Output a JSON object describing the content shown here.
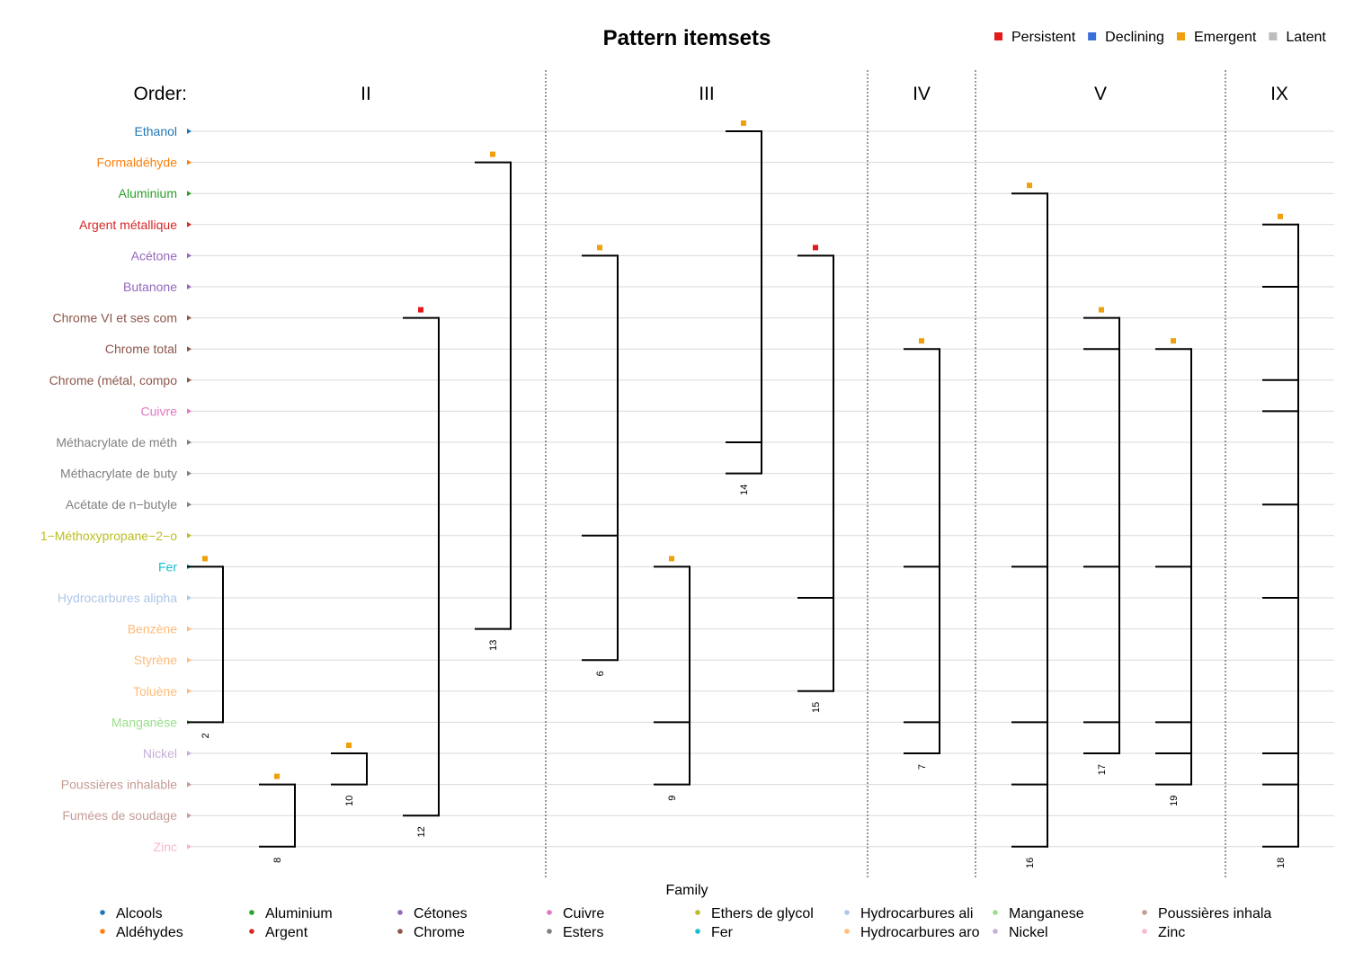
{
  "chart_data": {
    "type": "itemset-pattern",
    "title": "Pattern itemsets",
    "status_legend": [
      {
        "name": "Persistent",
        "color": "#e31a1c"
      },
      {
        "name": "Declining",
        "color": "#3a6fd8"
      },
      {
        "name": "Emergent",
        "color": "#f0a00a"
      },
      {
        "name": "Latent",
        "color": "#bdbdbd"
      }
    ],
    "order_label": "Order:",
    "orders": [
      {
        "label": "II",
        "patterns": [
          2,
          8,
          10,
          12,
          13
        ]
      },
      {
        "label": "III",
        "patterns": [
          6,
          9,
          14,
          15
        ]
      },
      {
        "label": "IV",
        "patterns": [
          7
        ]
      },
      {
        "label": "V",
        "patterns": [
          16,
          17,
          19
        ]
      },
      {
        "label": "IX",
        "patterns": [
          18
        ]
      }
    ],
    "items": [
      {
        "name": "Ethanol",
        "family": "Alcools"
      },
      {
        "name": "Formaldéhyde",
        "family": "Aldéhydes"
      },
      {
        "name": "Aluminium",
        "family": "Aluminium"
      },
      {
        "name": "Argent métallique",
        "family": "Argent"
      },
      {
        "name": "Acétone",
        "family": "Cétones"
      },
      {
        "name": "Butanone",
        "family": "Cétones"
      },
      {
        "name": "Chrome VI et ses com",
        "family": "Chrome"
      },
      {
        "name": "Chrome total",
        "family": "Chrome"
      },
      {
        "name": "Chrome (métal, compo",
        "family": "Chrome"
      },
      {
        "name": "Cuivre",
        "family": "Cuivre"
      },
      {
        "name": "Méthacrylate de méth",
        "family": "Esters"
      },
      {
        "name": "Méthacrylate de buty",
        "family": "Esters"
      },
      {
        "name": "Acétate de n−butyle",
        "family": "Esters"
      },
      {
        "name": "1−Méthoxypropane−2−o",
        "family": "Ethers de glycol"
      },
      {
        "name": "Fer",
        "family": "Fer"
      },
      {
        "name": "Hydrocarbures alipha",
        "family": "Hydrocarbures ali"
      },
      {
        "name": "Benzène",
        "family": "Hydrocarbures aro"
      },
      {
        "name": "Styrène",
        "family": "Hydrocarbures aro"
      },
      {
        "name": "Toluène",
        "family": "Hydrocarbures aro"
      },
      {
        "name": "Manganèse",
        "family": "Manganese"
      },
      {
        "name": "Nickel",
        "family": "Nickel"
      },
      {
        "name": "Poussières inhalable",
        "family": "Poussières inhala"
      },
      {
        "name": "Fumées de soudage",
        "family": "Poussières inhala"
      },
      {
        "name": "Zinc",
        "family": "Zinc"
      }
    ],
    "patterns": [
      {
        "id": "2",
        "order": "II",
        "status": "Emergent",
        "items": [
          "Fer",
          "Manganèse"
        ]
      },
      {
        "id": "8",
        "order": "II",
        "status": "Emergent",
        "items": [
          "Poussières inhalable",
          "Zinc"
        ]
      },
      {
        "id": "10",
        "order": "II",
        "status": "Emergent",
        "items": [
          "Nickel",
          "Poussières inhalable"
        ]
      },
      {
        "id": "12",
        "order": "II",
        "status": "Persistent",
        "items": [
          "Chrome VI et ses com",
          "Fumées de soudage"
        ]
      },
      {
        "id": "13",
        "order": "II",
        "status": "Emergent",
        "items": [
          "Formaldéhyde",
          "Benzène"
        ]
      },
      {
        "id": "6",
        "order": "III",
        "status": "Emergent",
        "items": [
          "Acétone",
          "1−Méthoxypropane−2−o",
          "Styrène"
        ]
      },
      {
        "id": "9",
        "order": "III",
        "status": "Emergent",
        "items": [
          "Fer",
          "Manganèse",
          "Poussières inhalable"
        ]
      },
      {
        "id": "14",
        "order": "III",
        "status": "Emergent",
        "items": [
          "Ethanol",
          "Méthacrylate de méth",
          "Méthacrylate de buty"
        ]
      },
      {
        "id": "15",
        "order": "III",
        "status": "Persistent",
        "items": [
          "Acétone",
          "Hydrocarbures alipha",
          "Toluène"
        ]
      },
      {
        "id": "7",
        "order": "IV",
        "status": "Emergent",
        "items": [
          "Chrome total",
          "Fer",
          "Manganèse",
          "Nickel"
        ]
      },
      {
        "id": "16",
        "order": "V",
        "status": "Emergent",
        "items": [
          "Aluminium",
          "Fer",
          "Manganèse",
          "Poussières inhalable",
          "Zinc"
        ]
      },
      {
        "id": "17",
        "order": "V",
        "status": "Emergent",
        "items": [
          "Chrome VI et ses com",
          "Chrome total",
          "Fer",
          "Manganèse",
          "Nickel"
        ]
      },
      {
        "id": "19",
        "order": "V",
        "status": "Emergent",
        "items": [
          "Chrome total",
          "Fer",
          "Manganèse",
          "Nickel",
          "Poussières inhalable"
        ]
      },
      {
        "id": "18",
        "order": "IX",
        "status": "Emergent",
        "items": [
          "Argent métallique",
          "Butanone",
          "Chrome (métal, compo",
          "Cuivre",
          "Acétate de n−butyle",
          "Hydrocarbures alipha",
          "Nickel",
          "Poussières inhalable",
          "Zinc"
        ]
      }
    ],
    "family_legend_title": "Family",
    "families": [
      {
        "name": "Alcools",
        "color": "#1f77b4"
      },
      {
        "name": "Aldéhydes",
        "color": "#ff7f0e"
      },
      {
        "name": "Aluminium",
        "color": "#2ca02c"
      },
      {
        "name": "Argent",
        "color": "#d62728"
      },
      {
        "name": "Cétones",
        "color": "#9467bd"
      },
      {
        "name": "Chrome",
        "color": "#8c564b"
      },
      {
        "name": "Cuivre",
        "color": "#e377c2"
      },
      {
        "name": "Esters",
        "color": "#7f7f7f"
      },
      {
        "name": "Ethers de glycol",
        "color": "#bcbd22"
      },
      {
        "name": "Fer",
        "color": "#17becf"
      },
      {
        "name": "Hydrocarbures ali",
        "color": "#aec7e8"
      },
      {
        "name": "Hydrocarbures aro",
        "color": "#ffbb78"
      },
      {
        "name": "Manganese",
        "color": "#98df8a"
      },
      {
        "name": "Nickel",
        "color": "#c5b0d5"
      },
      {
        "name": "Poussières inhala",
        "color": "#c49c94"
      },
      {
        "name": "Zinc",
        "color": "#f7b6d2"
      }
    ],
    "grid": true
  }
}
